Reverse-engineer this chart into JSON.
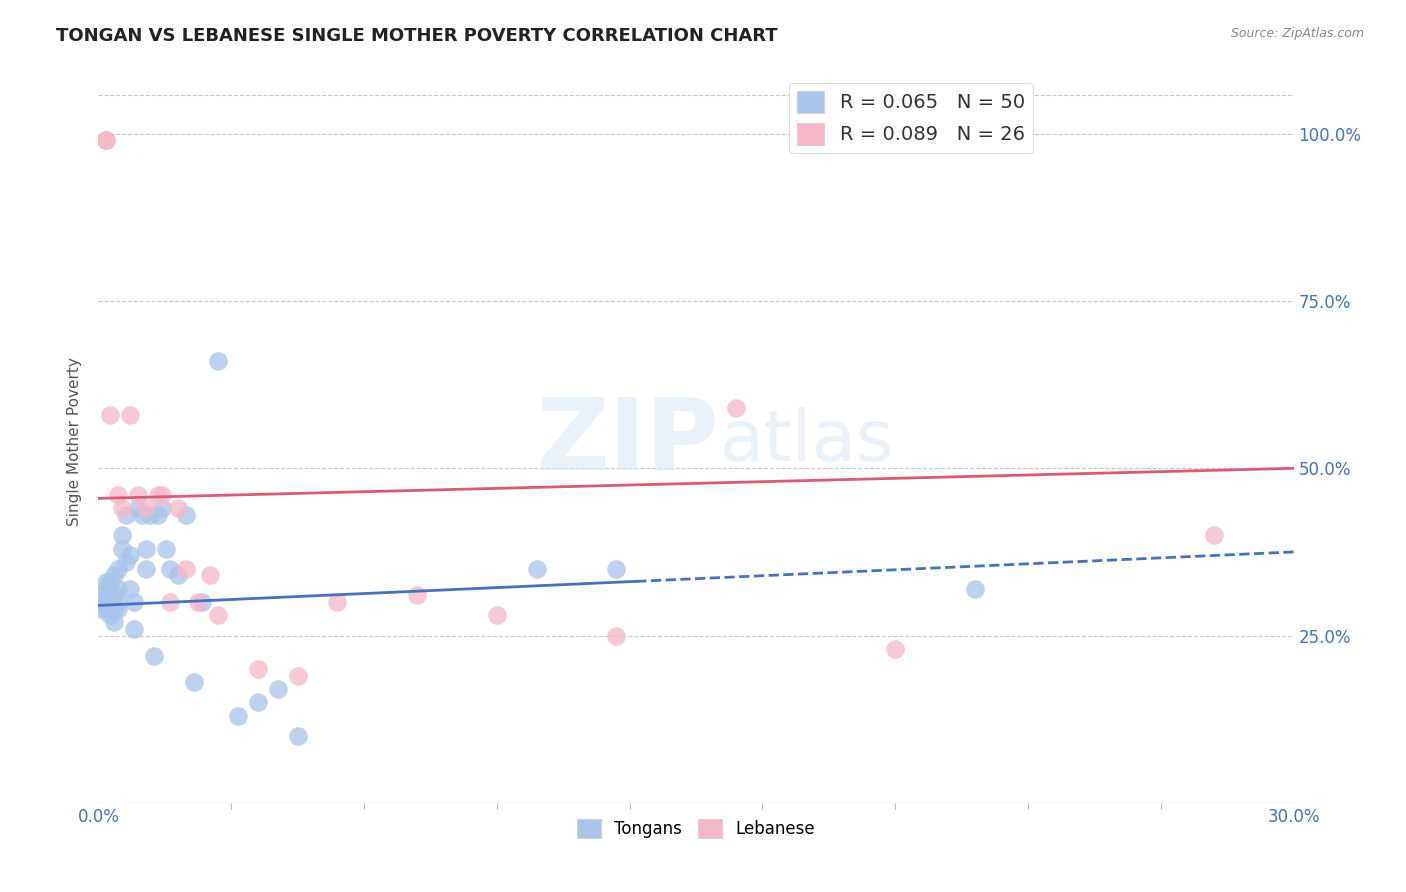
{
  "title": "TONGAN VS LEBANESE SINGLE MOTHER POVERTY CORRELATION CHART",
  "source": "Source: ZipAtlas.com",
  "ylabel": "Single Mother Poverty",
  "legend_bottom": [
    "Tongans",
    "Lebanese"
  ],
  "R_tongan": 0.065,
  "N_tongan": 50,
  "R_lebanese": 0.089,
  "N_lebanese": 26,
  "tongan_color": "#a8c4e8",
  "lebanese_color": "#f5b8c8",
  "tongan_line_color": "#4472c4",
  "lebanese_line_color": "#e05878",
  "background_color": "#ffffff",
  "grid_color": "#c8c8c8",
  "x_min": 0.0,
  "x_max": 0.3,
  "y_min": 0.0,
  "y_max": 1.08,
  "tongan_x": [
    0.001,
    0.001,
    0.001,
    0.002,
    0.002,
    0.002,
    0.002,
    0.003,
    0.003,
    0.003,
    0.003,
    0.003,
    0.004,
    0.004,
    0.004,
    0.004,
    0.005,
    0.005,
    0.005,
    0.005,
    0.006,
    0.006,
    0.007,
    0.007,
    0.008,
    0.008,
    0.009,
    0.009,
    0.01,
    0.011,
    0.012,
    0.012,
    0.013,
    0.014,
    0.015,
    0.016,
    0.017,
    0.018,
    0.02,
    0.022,
    0.024,
    0.026,
    0.03,
    0.035,
    0.04,
    0.045,
    0.05,
    0.11,
    0.13,
    0.22
  ],
  "tongan_y": [
    0.3,
    0.31,
    0.29,
    0.33,
    0.3,
    0.29,
    0.32,
    0.3,
    0.28,
    0.31,
    0.33,
    0.3,
    0.29,
    0.31,
    0.34,
    0.27,
    0.3,
    0.32,
    0.29,
    0.35,
    0.38,
    0.4,
    0.36,
    0.43,
    0.32,
    0.37,
    0.3,
    0.26,
    0.44,
    0.43,
    0.38,
    0.35,
    0.43,
    0.22,
    0.43,
    0.44,
    0.38,
    0.35,
    0.34,
    0.43,
    0.18,
    0.3,
    0.66,
    0.13,
    0.15,
    0.17,
    0.1,
    0.35,
    0.35,
    0.32
  ],
  "lebanese_x": [
    0.002,
    0.002,
    0.002,
    0.003,
    0.005,
    0.006,
    0.008,
    0.01,
    0.012,
    0.015,
    0.016,
    0.018,
    0.02,
    0.022,
    0.025,
    0.028,
    0.03,
    0.04,
    0.05,
    0.06,
    0.08,
    0.1,
    0.13,
    0.16,
    0.2,
    0.28
  ],
  "lebanese_y": [
    0.99,
    0.99,
    0.99,
    0.58,
    0.46,
    0.44,
    0.58,
    0.46,
    0.44,
    0.46,
    0.46,
    0.3,
    0.44,
    0.35,
    0.3,
    0.34,
    0.28,
    0.2,
    0.19,
    0.3,
    0.31,
    0.28,
    0.25,
    0.59,
    0.23,
    0.4
  ],
  "tongan_line_x0": 0.0,
  "tongan_line_x_solid_end": 0.135,
  "tongan_line_x1": 0.3,
  "tongan_line_y0": 0.295,
  "tongan_line_y1": 0.375,
  "lebanese_line_y0": 0.455,
  "lebanese_line_y1": 0.5
}
